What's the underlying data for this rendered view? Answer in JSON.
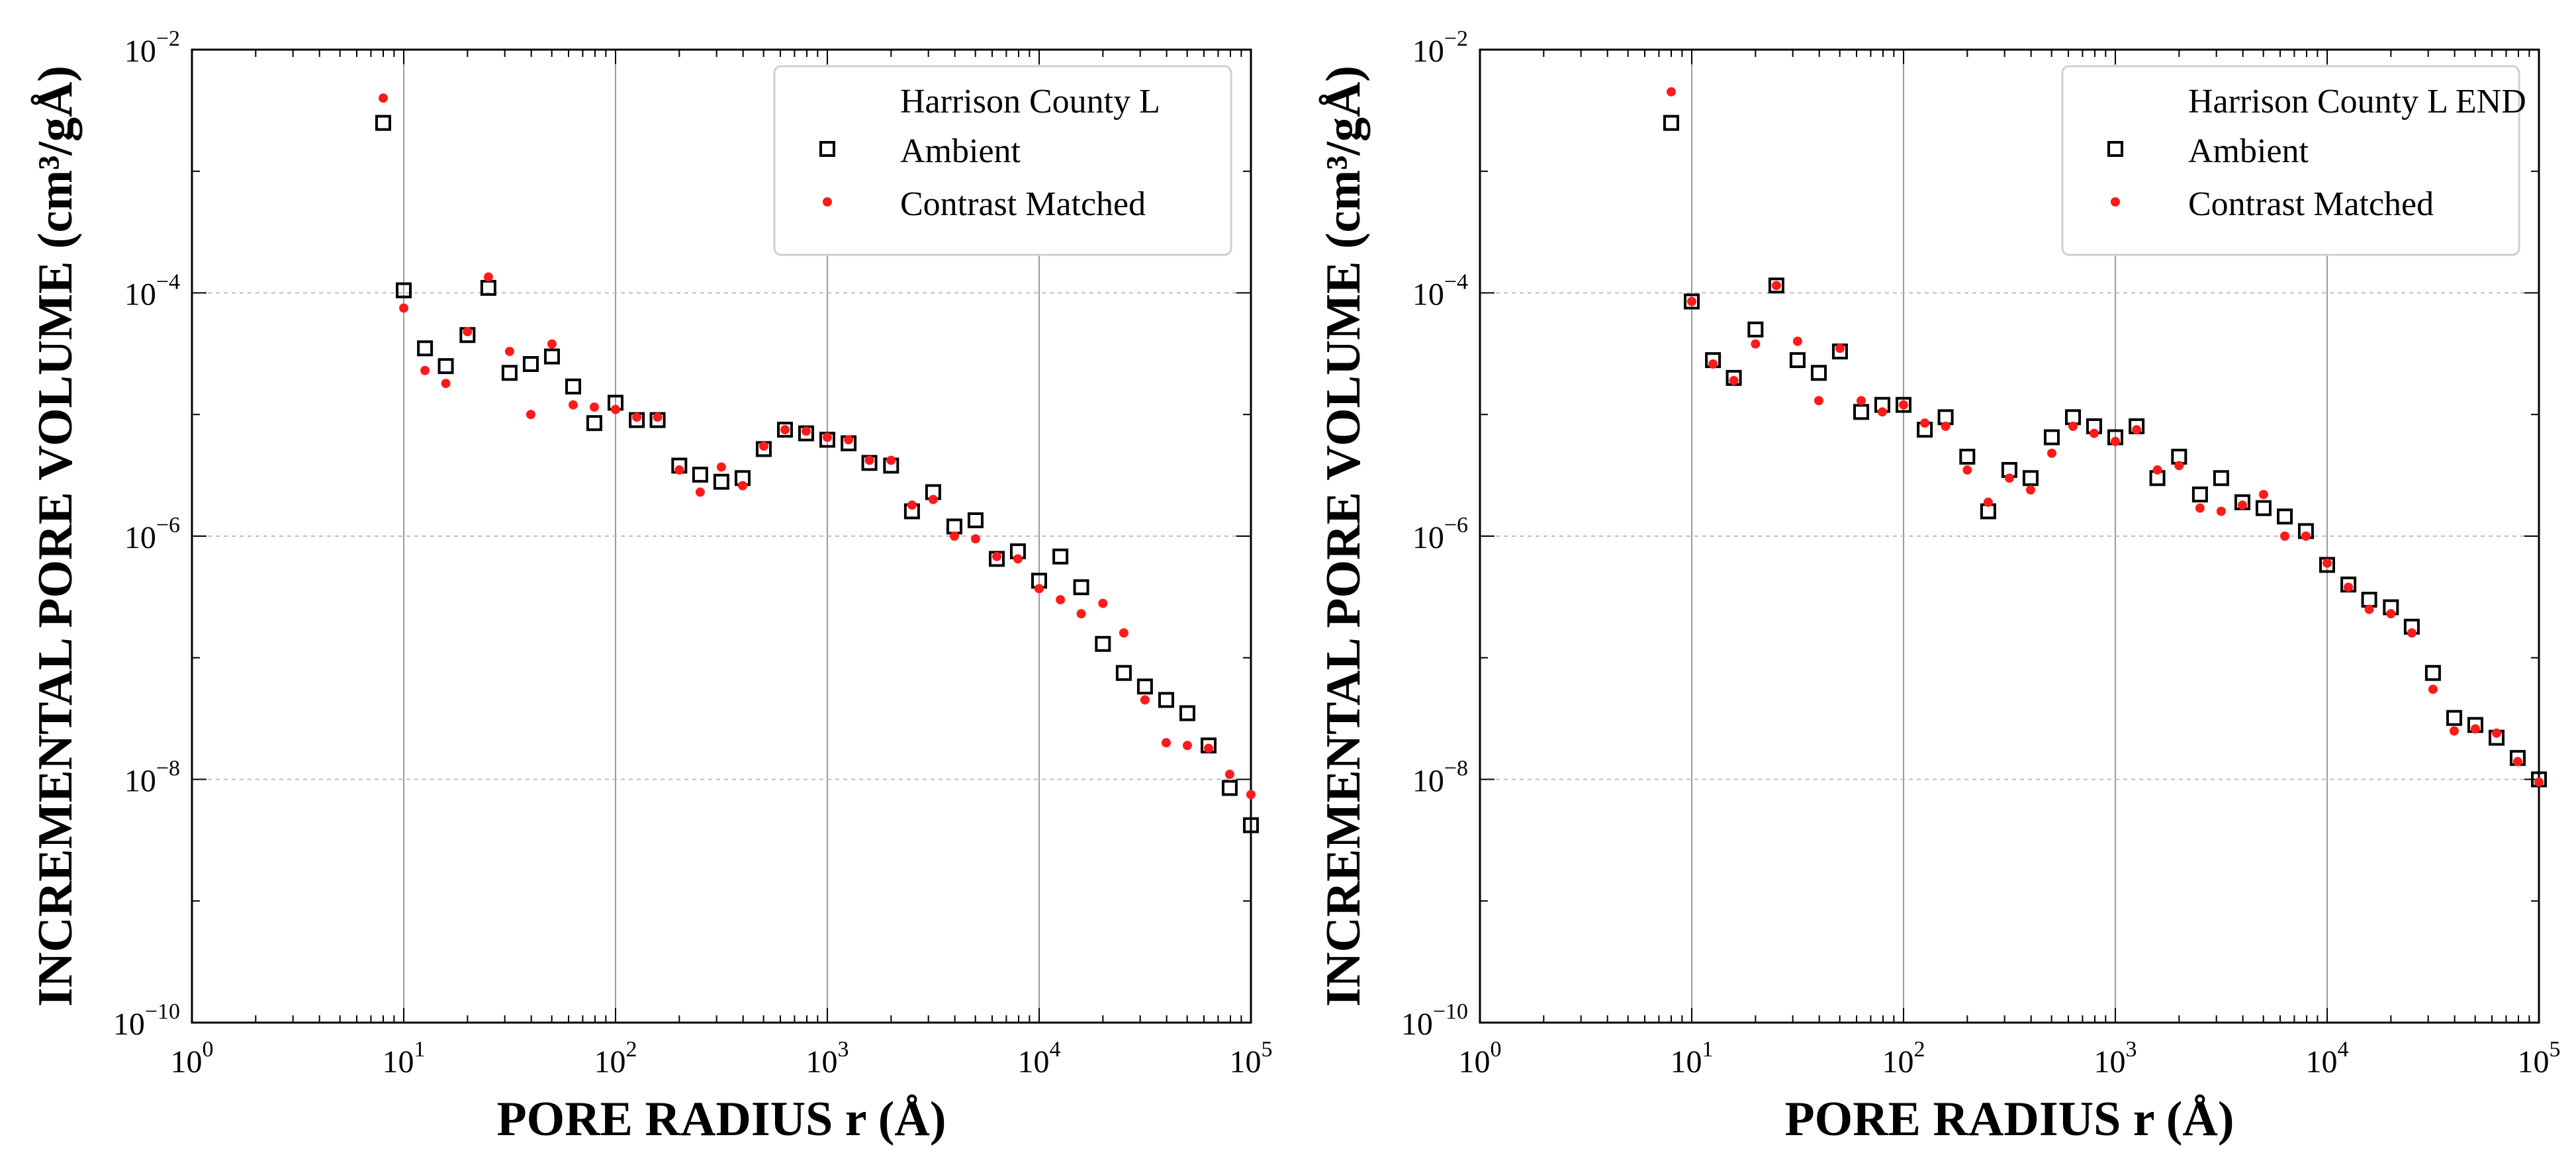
{
  "chart_data": [
    {
      "type": "scatter",
      "xscale": "log",
      "yscale": "log",
      "xlabel": "PORE RADIUS r (Å)",
      "ylabel": "INCREMENTAL PORE VOLUME (cm³/gÅ)",
      "xlim": [
        1,
        100000
      ],
      "ylim": [
        1e-10,
        0.01
      ],
      "grid": true,
      "legend": "top-right",
      "legend_title": "Harrison County L",
      "x_ticks": [
        {
          "base": "10",
          "exp": "0"
        },
        {
          "base": "10",
          "exp": "1"
        },
        {
          "base": "10",
          "exp": "2"
        },
        {
          "base": "10",
          "exp": "3"
        },
        {
          "base": "10",
          "exp": "4"
        },
        {
          "base": "10",
          "exp": "5"
        }
      ],
      "y_ticks": [
        {
          "base": "10",
          "exp": "−10"
        },
        {
          "base": "10",
          "exp": "−8"
        },
        {
          "base": "10",
          "exp": "−6"
        },
        {
          "base": "10",
          "exp": "−4"
        },
        {
          "base": "10",
          "exp": "−2"
        }
      ],
      "series": [
        {
          "name": "Ambient",
          "marker": "open-square",
          "color": "#000000",
          "points": [
            [
              8,
              0.0025
            ],
            [
              10,
              0.000105
            ],
            [
              12.6,
              3.5e-05
            ],
            [
              15.8,
              2.5e-05
            ],
            [
              20,
              4.5e-05
            ],
            [
              25.1,
              0.00011
            ],
            [
              31.6,
              2.2e-05
            ],
            [
              39.8,
              2.6e-05
            ],
            [
              50.1,
              3e-05
            ],
            [
              63.1,
              1.7e-05
            ],
            [
              79.4,
              8.5e-06
            ],
            [
              100,
              1.25e-05
            ],
            [
              126,
              9e-06
            ],
            [
              158,
              9e-06
            ],
            [
              200,
              3.8e-06
            ],
            [
              251,
              3.2e-06
            ],
            [
              316,
              2.8e-06
            ],
            [
              398,
              3e-06
            ],
            [
              501,
              5.2e-06
            ],
            [
              631,
              7.5e-06
            ],
            [
              794,
              7e-06
            ],
            [
              1000,
              6.2e-06
            ],
            [
              1260,
              5.8e-06
            ],
            [
              1580,
              4e-06
            ],
            [
              2000,
              3.8e-06
            ],
            [
              2510,
              1.6e-06
            ],
            [
              3160,
              2.3e-06
            ],
            [
              3980,
              1.2e-06
            ],
            [
              5010,
              1.35e-06
            ],
            [
              6310,
              6.5e-07
            ],
            [
              7940,
              7.5e-07
            ],
            [
              10000,
              4.3e-07
            ],
            [
              12600,
              6.8e-07
            ],
            [
              15800,
              3.8e-07
            ],
            [
              20000,
              1.3e-07
            ],
            [
              25100,
              7.5e-08
            ],
            [
              31600,
              5.8e-08
            ],
            [
              39800,
              4.5e-08
            ],
            [
              50100,
              3.5e-08
            ],
            [
              63100,
              1.9e-08
            ],
            [
              79400,
              8.5e-09
            ],
            [
              100000,
              4.2e-09
            ]
          ]
        },
        {
          "name": "Contrast Matched",
          "marker": "filled-circle",
          "color": "#ff1a1a",
          "points": [
            [
              8,
              0.004
            ],
            [
              10,
              7.5e-05
            ],
            [
              12.6,
              2.3e-05
            ],
            [
              15.8,
              1.8e-05
            ],
            [
              20,
              4.8e-05
            ],
            [
              25.1,
              0.000135
            ],
            [
              31.6,
              3.3e-05
            ],
            [
              39.8,
              1e-05
            ],
            [
              50.1,
              3.8e-05
            ],
            [
              63.1,
              1.2e-05
            ],
            [
              79.4,
              1.15e-05
            ],
            [
              100,
              1.1e-05
            ],
            [
              126,
              9.5e-06
            ],
            [
              158,
              9.5e-06
            ],
            [
              200,
              3.5e-06
            ],
            [
              251,
              2.3e-06
            ],
            [
              316,
              3.7e-06
            ],
            [
              398,
              2.6e-06
            ],
            [
              501,
              5.5e-06
            ],
            [
              631,
              7.5e-06
            ],
            [
              794,
              7.3e-06
            ],
            [
              1000,
              6.5e-06
            ],
            [
              1260,
              6.2e-06
            ],
            [
              1580,
              4.2e-06
            ],
            [
              2000,
              4.2e-06
            ],
            [
              2510,
              1.8e-06
            ],
            [
              3160,
              2e-06
            ],
            [
              3980,
              1e-06
            ],
            [
              5010,
              9.5e-07
            ],
            [
              6310,
              6.8e-07
            ],
            [
              7940,
              6.5e-07
            ],
            [
              10000,
              3.7e-07
            ],
            [
              12600,
              3e-07
            ],
            [
              15800,
              2.3e-07
            ],
            [
              20000,
              2.8e-07
            ],
            [
              25100,
              1.6e-07
            ],
            [
              31600,
              4.5e-08
            ],
            [
              39800,
              2e-08
            ],
            [
              50100,
              1.9e-08
            ],
            [
              63100,
              1.8e-08
            ],
            [
              79400,
              1.1e-08
            ],
            [
              100000,
              7.5e-09
            ]
          ]
        }
      ]
    },
    {
      "type": "scatter",
      "xscale": "log",
      "yscale": "log",
      "xlabel": "PORE RADIUS r (Å)",
      "ylabel": "INCREMENTAL PORE VOLUME (cm³/gÅ)",
      "xlim": [
        1,
        100000
      ],
      "ylim": [
        1e-10,
        0.01
      ],
      "grid": true,
      "legend": "top-right",
      "legend_title": "Harrison County L END",
      "x_ticks": [
        {
          "base": "10",
          "exp": "0"
        },
        {
          "base": "10",
          "exp": "1"
        },
        {
          "base": "10",
          "exp": "2"
        },
        {
          "base": "10",
          "exp": "3"
        },
        {
          "base": "10",
          "exp": "4"
        },
        {
          "base": "10",
          "exp": "5"
        }
      ],
      "y_ticks": [
        {
          "base": "10",
          "exp": "−10"
        },
        {
          "base": "10",
          "exp": "−8"
        },
        {
          "base": "10",
          "exp": "−6"
        },
        {
          "base": "10",
          "exp": "−4"
        },
        {
          "base": "10",
          "exp": "−2"
        }
      ],
      "series": [
        {
          "name": "Ambient",
          "marker": "open-square",
          "color": "#000000",
          "points": [
            [
              8,
              0.0025
            ],
            [
              10,
              8.5e-05
            ],
            [
              12.6,
              2.8e-05
            ],
            [
              15.8,
              2e-05
            ],
            [
              20,
              5e-05
            ],
            [
              25.1,
              0.000115
            ],
            [
              31.6,
              2.8e-05
            ],
            [
              39.8,
              2.2e-05
            ],
            [
              50.1,
              3.3e-05
            ],
            [
              63.1,
              1.05e-05
            ],
            [
              79.4,
              1.2e-05
            ],
            [
              100,
              1.2e-05
            ],
            [
              126,
              7.5e-06
            ],
            [
              158,
              9.5e-06
            ],
            [
              200,
              4.5e-06
            ],
            [
              251,
              1.6e-06
            ],
            [
              316,
              3.5e-06
            ],
            [
              398,
              3e-06
            ],
            [
              501,
              6.5e-06
            ],
            [
              631,
              9.5e-06
            ],
            [
              794,
              8e-06
            ],
            [
              1000,
              6.5e-06
            ],
            [
              1260,
              8e-06
            ],
            [
              1580,
              3e-06
            ],
            [
              2000,
              4.5e-06
            ],
            [
              2510,
              2.2e-06
            ],
            [
              3160,
              3e-06
            ],
            [
              3980,
              1.9e-06
            ],
            [
              5010,
              1.7e-06
            ],
            [
              6310,
              1.45e-06
            ],
            [
              7940,
              1.1e-06
            ],
            [
              10000,
              5.8e-07
            ],
            [
              12600,
              4e-07
            ],
            [
              15800,
              3e-07
            ],
            [
              20000,
              2.6e-07
            ],
            [
              25100,
              1.8e-07
            ],
            [
              31600,
              7.5e-08
            ],
            [
              39800,
              3.2e-08
            ],
            [
              50100,
              2.8e-08
            ],
            [
              63100,
              2.2e-08
            ],
            [
              79400,
              1.5e-08
            ],
            [
              100000,
              1e-08
            ]
          ]
        },
        {
          "name": "Contrast Matched",
          "marker": "filled-circle",
          "color": "#ff1a1a",
          "points": [
            [
              8,
              0.0045
            ],
            [
              10,
              8.5e-05
            ],
            [
              12.6,
              2.6e-05
            ],
            [
              15.8,
              1.9e-05
            ],
            [
              20,
              3.8e-05
            ],
            [
              25.1,
              0.000115
            ],
            [
              31.6,
              4e-05
            ],
            [
              39.8,
              1.3e-05
            ],
            [
              50.1,
              3.5e-05
            ],
            [
              63.1,
              1.3e-05
            ],
            [
              79.4,
              1.05e-05
            ],
            [
              100,
              1.2e-05
            ],
            [
              126,
              8.5e-06
            ],
            [
              158,
              8e-06
            ],
            [
              200,
              3.5e-06
            ],
            [
              251,
              1.9e-06
            ],
            [
              316,
              3e-06
            ],
            [
              398,
              2.4e-06
            ],
            [
              501,
              4.8e-06
            ],
            [
              631,
              8e-06
            ],
            [
              794,
              7e-06
            ],
            [
              1000,
              6e-06
            ],
            [
              1260,
              7.5e-06
            ],
            [
              1580,
              3.5e-06
            ],
            [
              2000,
              3.8e-06
            ],
            [
              2510,
              1.7e-06
            ],
            [
              3160,
              1.6e-06
            ],
            [
              3980,
              1.8e-06
            ],
            [
              5010,
              2.2e-06
            ],
            [
              6310,
              1e-06
            ],
            [
              7940,
              1e-06
            ],
            [
              10000,
              6e-07
            ],
            [
              12600,
              3.8e-07
            ],
            [
              15800,
              2.5e-07
            ],
            [
              20000,
              2.3e-07
            ],
            [
              25100,
              1.6e-07
            ],
            [
              31600,
              5.5e-08
            ],
            [
              39800,
              2.5e-08
            ],
            [
              50100,
              2.6e-08
            ],
            [
              63100,
              2.4e-08
            ],
            [
              79400,
              1.4e-08
            ],
            [
              100000,
              9.5e-09
            ]
          ]
        }
      ]
    }
  ]
}
